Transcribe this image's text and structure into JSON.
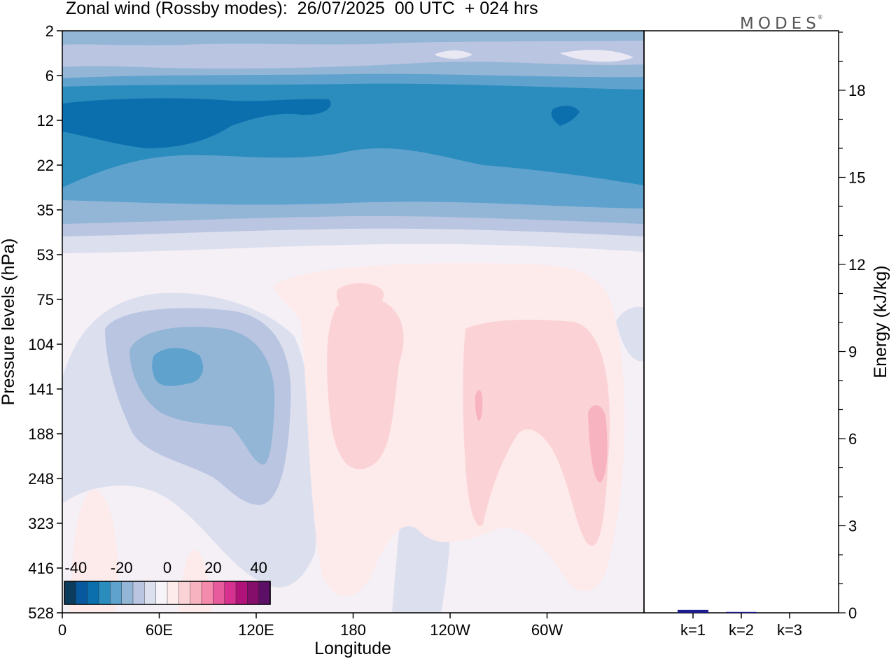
{
  "header": {
    "title": "Zonal wind (Rossby modes):  26/07/2025  00 UTC  + 024 hrs",
    "logo_text": "MODES",
    "logo_mark": "®"
  },
  "chart_data": [
    {
      "type": "heatmap",
      "title": "Zonal wind (Rossby modes):  26/07/2025  00 UTC  + 024 hrs",
      "xlabel": "Longitude",
      "ylabel": "Pressure levels (hPa)",
      "x_ticks": [
        "0",
        "60E",
        "120E",
        "180",
        "120W",
        "60W"
      ],
      "y_ticks": [
        "2",
        "6",
        "12",
        "22",
        "35",
        "53",
        "75",
        "104",
        "141",
        "188",
        "248",
        "323",
        "416",
        "528"
      ],
      "colorbar": {
        "tick_labels": [
          "-40",
          "-20",
          "0",
          "20",
          "40"
        ],
        "range": [
          -45,
          45
        ],
        "colors": [
          "#0b3c5d",
          "#08589e",
          "#0a6fac",
          "#2b8cbe",
          "#5ea2cd",
          "#93b5d6",
          "#b9c5e1",
          "#dcdfee",
          "#f7f4f9",
          "#fdeaea",
          "#fbd3d6",
          "#f7b3c0",
          "#f48aac",
          "#e85c9e",
          "#d6318f",
          "#b0127a",
          "#850e6b",
          "#5b1065"
        ]
      },
      "background_color": "#f5eff6"
    },
    {
      "type": "bar",
      "categories": [
        "k=1",
        "k=2",
        "k=3"
      ],
      "values": [
        0.1,
        0.03,
        0.0
      ],
      "ylabel": "Energy (kJ/kg)",
      "ylim": [
        0,
        20
      ],
      "y_ticks": [
        0,
        3,
        6,
        9,
        12,
        15,
        18
      ],
      "bar_color": "#1c1c8c"
    }
  ]
}
